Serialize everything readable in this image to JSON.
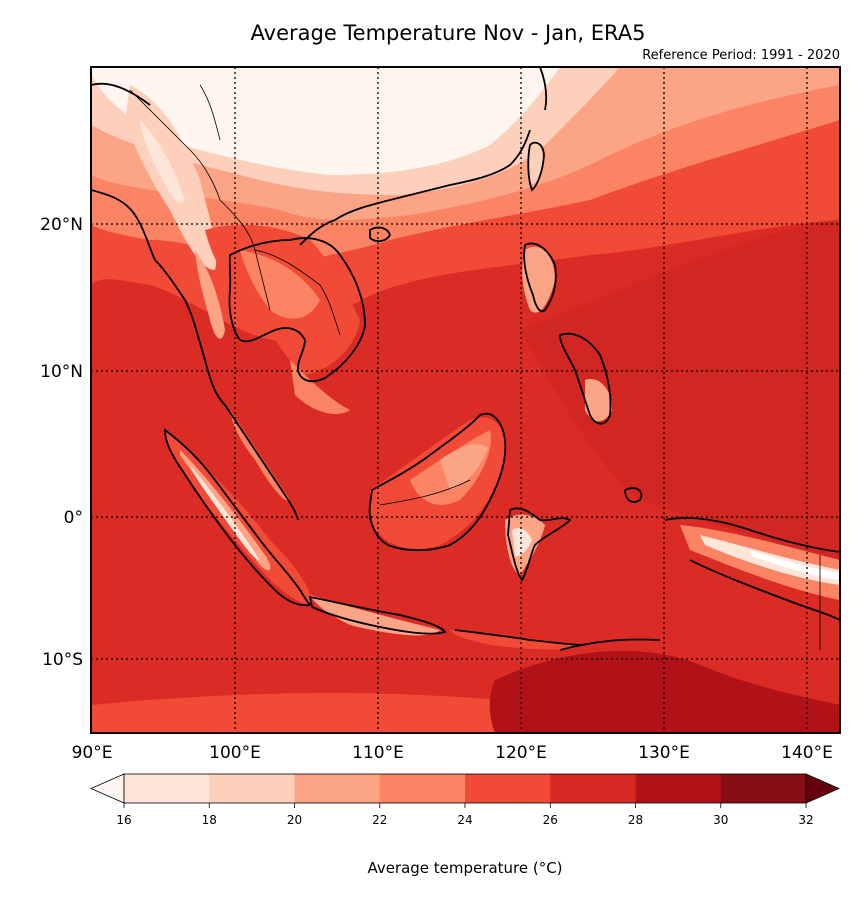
{
  "map": {
    "title": "Average Temperature Nov - Jan, ERA5",
    "subtitle": "Reference Period: 1991 - 2020",
    "lat_ticks": [
      "20°N",
      "10°N",
      "0°",
      "10°S"
    ],
    "lon_ticks": [
      "90°E",
      "100°E",
      "110°E",
      "120°E",
      "130°E",
      "140°E"
    ],
    "extent": {
      "lon_min": 90,
      "lon_max": 142.3,
      "lat_min": -15,
      "lat_max": 30.5
    },
    "gridlines": "dotted"
  },
  "colorbar": {
    "label": "Average temperature (°C)",
    "ticks": [
      "16",
      "18",
      "20",
      "22",
      "24",
      "26",
      "28",
      "30",
      "32"
    ],
    "colors": [
      "#fee5d9",
      "#fdd0bc",
      "#fca486",
      "#fb8464",
      "#f14a36",
      "#d92924",
      "#b11218",
      "#860d13"
    ],
    "under_color": "#fff5f0",
    "over_color": "#67000d"
  }
}
